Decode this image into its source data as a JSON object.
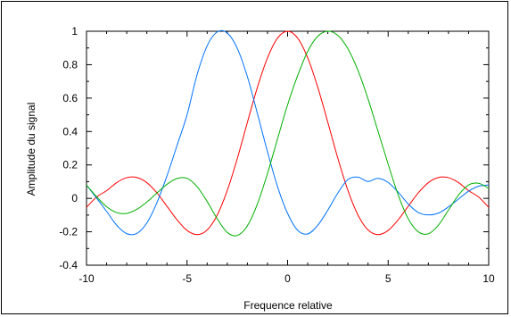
{
  "chart_data": {
    "type": "line",
    "title": "",
    "xlabel": "Frequence relative",
    "ylabel": "Amplitude du signal",
    "xlim": [
      -10,
      10
    ],
    "ylim": [
      -0.4,
      1
    ],
    "x_ticks": [
      -10,
      -5,
      0,
      5,
      10
    ],
    "x_tick_labels": [
      "-10",
      "-5",
      "0",
      "5",
      "10"
    ],
    "y_ticks": [
      -0.4,
      -0.2,
      0,
      0.2,
      0.4,
      0.6,
      0.8,
      1
    ],
    "y_tick_labels": [
      "-0.4",
      "-0.2",
      "0",
      "0.2",
      "0.4",
      "0.6",
      "0.8",
      "1"
    ],
    "grid": false,
    "legend": "none",
    "x": [
      -10,
      -9.5,
      -9,
      -8.5,
      -8,
      -7.5,
      -7,
      -6.5,
      -6,
      -5.5,
      -5,
      -4.5,
      -4,
      -3.5,
      -3,
      -2.5,
      -2,
      -1.5,
      -1,
      -0.5,
      0,
      0.5,
      1,
      1.5,
      2,
      2.5,
      3,
      3.5,
      4,
      4.5,
      5,
      5.5,
      6,
      6.5,
      7,
      7.5,
      8,
      8.5,
      9,
      9.5,
      10
    ],
    "series": [
      {
        "color": "#ff0000",
        "values": [
          -0.054,
          0.008,
          0.046,
          0.094,
          0.124,
          0.125,
          0.094,
          0.033,
          -0.047,
          -0.128,
          -0.192,
          -0.217,
          -0.189,
          -0.1,
          0.047,
          0.239,
          0.455,
          0.665,
          0.841,
          0.959,
          1.0,
          0.959,
          0.841,
          0.665,
          0.455,
          0.239,
          0.047,
          -0.1,
          -0.189,
          -0.217,
          -0.192,
          -0.128,
          -0.047,
          0.033,
          0.094,
          0.125,
          0.124,
          0.094,
          0.046,
          0.008,
          -0.054
        ]
      },
      {
        "color": "#0072ff",
        "values": [
          0.08,
          0.002,
          -0.078,
          -0.161,
          -0.211,
          -0.21,
          -0.147,
          -0.026,
          0.134,
          0.316,
          0.5,
          0.741,
          0.913,
          0.996,
          0.989,
          0.897,
          0.728,
          0.507,
          0.279,
          0.07,
          -0.09,
          -0.191,
          -0.213,
          -0.161,
          -0.07,
          0.032,
          0.113,
          0.127,
          0.101,
          0.12,
          0.095,
          0.037,
          -0.034,
          -0.085,
          -0.099,
          -0.088,
          -0.051,
          -0.004,
          0.043,
          0.073,
          0.08
        ]
      },
      {
        "color": "#00b000",
        "values": [
          0.08,
          0.01,
          -0.05,
          -0.085,
          -0.09,
          -0.066,
          -0.022,
          0.032,
          0.084,
          0.119,
          0.12,
          0.07,
          -0.019,
          -0.122,
          -0.204,
          -0.222,
          -0.164,
          -0.033,
          0.149,
          0.357,
          0.56,
          0.735,
          0.88,
          0.97,
          1.0,
          0.975,
          0.895,
          0.765,
          0.595,
          0.4,
          0.205,
          0.02,
          -0.122,
          -0.2,
          -0.212,
          -0.16,
          -0.07,
          0.02,
          0.08,
          0.09,
          0.06
        ]
      }
    ]
  }
}
